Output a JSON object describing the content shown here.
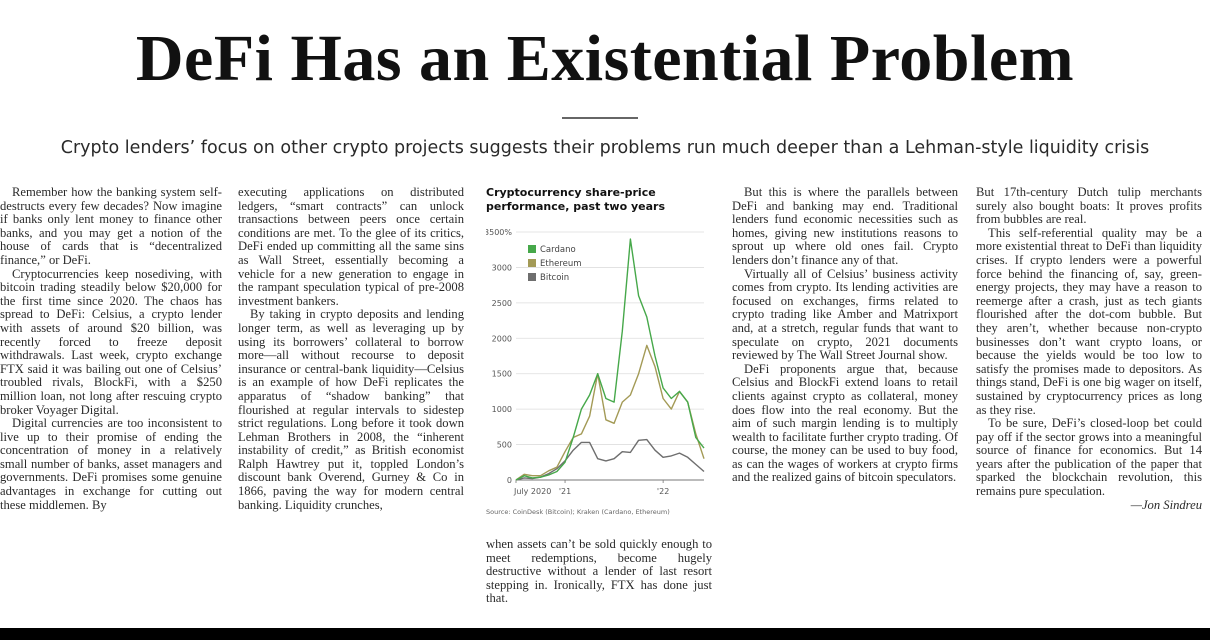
{
  "article": {
    "headline": "DeFi Has an Existential Problem",
    "deck": "Crypto lenders’ focus on other crypto projects suggests their problems run much deeper than a Lehman-style liquidity crisis",
    "byline": "—Jon Sindreu"
  },
  "columns": {
    "col1": [
      "Remember how the banking system self-destructs every few decades? Now imagine if banks only lent money to finance other banks, and you may get a notion of the house of cards that is “decentralized finance,” or DeFi.",
      "Cryptocurrencies keep nosediving, with bitcoin trading steadily below $20,000 for the first time since 2020. The chaos has spread to DeFi: Celsius, a crypto lender with assets of around $20 billion, was recently forced to freeze deposit withdrawals. Last week, crypto exchange FTX said it was bailing out one of Celsius’ troubled rivals, BlockFi, with a $250 million loan, not long after rescuing crypto broker Voyager Digital.",
      "Digital currencies are too inconsistent to live up to their promise of ending the concentration of money in a relatively small number of banks, asset managers and governments. DeFi promises some genuine advantages in exchange for cutting out these middlemen. By"
    ],
    "col2": [
      "executing applications on distributed ledgers, “smart contracts” can unlock transactions between peers once certain conditions are met. To the glee of its critics, DeFi ended up committing all the same sins as Wall Street, essentially becoming a vehicle for a new generation to engage in the rampant speculation typical of pre-2008 investment bankers.",
      "By taking in crypto deposits and lending longer term, as well as leveraging up by using its borrowers’ collateral to borrow more—all without recourse to deposit insurance or central-bank liquidity—Celsius is an example of how DeFi replicates the apparatus of “shadow banking” that flourished at regular intervals to sidestep strict regulations. Long before it took down Lehman Brothers in 2008, the “inherent instability of credit,” as British economist Ralph Hawtrey put it, toppled London’s discount bank Overend, Gurney & Co in 1866, paving the way for modern central banking. Liquidity crunches,"
    ],
    "col3": [
      "when assets can’t be sold quickly enough to meet redemptions, become hugely destructive without a lender of last resort stepping in. Ironically, FTX has done just that."
    ],
    "col4": [
      "But this is where the parallels between DeFi and banking may end. Traditional lenders fund economic necessities such as homes, giving new institutions reasons to sprout up where old ones fail. Crypto lenders don’t finance any of that.",
      "Virtually all of Celsius’ business activity comes from crypto. Its lending activities are focused on exchanges, firms related to crypto trading like Amber and Matrixport and, at a stretch, regular funds that want to speculate on crypto, 2021 documents reviewed by The Wall Street Journal show.",
      "DeFi proponents argue that, because Celsius and BlockFi extend loans to retail clients against crypto as collateral, money does flow into the real economy. But the aim of such margin lending is to multiply wealth to facilitate further crypto trading. Of course, the money can be used to buy food, as can the wages of workers at crypto firms and the realized gains of bitcoin speculators."
    ],
    "col5": [
      "But 17th-century Dutch tulip merchants surely also bought boats: It proves profits from bubbles are real.",
      "This self-referential quality may be a more existential threat to DeFi than liquidity crises. If crypto lenders were a powerful force behind the financing of, say, green-energy projects, they may have a reason to reemerge after a crash, just as tech giants flourished after the dot-com bubble. But they aren’t, whether because non-crypto businesses don’t want crypto loans, or because the yields would be too low to satisfy the promises made to depositors. As things stand, DeFi is one big wager on itself, sustained by cryptocurrency prices as long as they rise.",
      "To be sure, DeFi’s closed-loop bet could pay off if the sector grows into a meaningful source of finance for economics. But 14 years after the publication of the paper that sparked the blockchain revolution, this remains pure speculation."
    ]
  },
  "chart_data": {
    "type": "line",
    "title": "Cryptocurrency share-price performance, past two years",
    "source": "Source: CoinDesk (Bitcoin); Kraken (Cardano, Ethereum)",
    "y_tick_labels": [
      "3500%",
      "3000",
      "2500",
      "2000",
      "1500",
      "1000",
      "500",
      "0"
    ],
    "y_ticks": [
      3500,
      3000,
      2500,
      2000,
      1500,
      1000,
      500,
      0
    ],
    "ylim": [
      0,
      3500
    ],
    "x_tick_labels": [
      "July 2020",
      "'21",
      "'22"
    ],
    "x_ticks": [
      "2020-07",
      "2021-01",
      "2022-01"
    ],
    "xlim": [
      "2020-07",
      "2022-06"
    ],
    "grid": true,
    "legend_position": "top-left",
    "series": [
      {
        "name": "Cardano",
        "color": "#46a84a",
        "x": [
          "2020-07",
          "2020-08",
          "2020-09",
          "2020-10",
          "2020-11",
          "2020-12",
          "2021-01",
          "2021-02",
          "2021-03",
          "2021-04",
          "2021-05",
          "2021-06",
          "2021-07",
          "2021-08",
          "2021-09",
          "2021-10",
          "2021-11",
          "2021-12",
          "2022-01",
          "2022-02",
          "2022-03",
          "2022-04",
          "2022-05",
          "2022-06"
        ],
        "values": [
          0,
          60,
          30,
          40,
          70,
          120,
          250,
          600,
          1000,
          1200,
          1500,
          1150,
          1100,
          2100,
          3400,
          2600,
          2300,
          1750,
          1300,
          1150,
          1250,
          1100,
          600,
          450
        ]
      },
      {
        "name": "Ethereum",
        "color": "#a39a56",
        "x": [
          "2020-07",
          "2020-08",
          "2020-09",
          "2020-10",
          "2020-11",
          "2020-12",
          "2021-01",
          "2021-02",
          "2021-03",
          "2021-04",
          "2021-05",
          "2021-06",
          "2021-07",
          "2021-08",
          "2021-09",
          "2021-10",
          "2021-11",
          "2021-12",
          "2022-01",
          "2022-02",
          "2022-03",
          "2022-04",
          "2022-05",
          "2022-06"
        ],
        "values": [
          0,
          80,
          60,
          60,
          130,
          180,
          400,
          600,
          650,
          900,
          1500,
          850,
          800,
          1100,
          1200,
          1500,
          1900,
          1600,
          1150,
          1000,
          1250,
          1100,
          650,
          300
        ]
      },
      {
        "name": "Bitcoin",
        "color": "#6e6e6e",
        "x": [
          "2020-07",
          "2020-08",
          "2020-09",
          "2020-10",
          "2020-11",
          "2020-12",
          "2021-01",
          "2021-02",
          "2021-03",
          "2021-04",
          "2021-05",
          "2021-06",
          "2021-07",
          "2021-08",
          "2021-09",
          "2021-10",
          "2021-11",
          "2021-12",
          "2022-01",
          "2022-02",
          "2022-03",
          "2022-04",
          "2022-05",
          "2022-06"
        ],
        "values": [
          0,
          30,
          20,
          40,
          90,
          160,
          270,
          420,
          530,
          530,
          300,
          270,
          300,
          400,
          390,
          560,
          570,
          420,
          320,
          340,
          380,
          320,
          220,
          120
        ]
      }
    ]
  }
}
